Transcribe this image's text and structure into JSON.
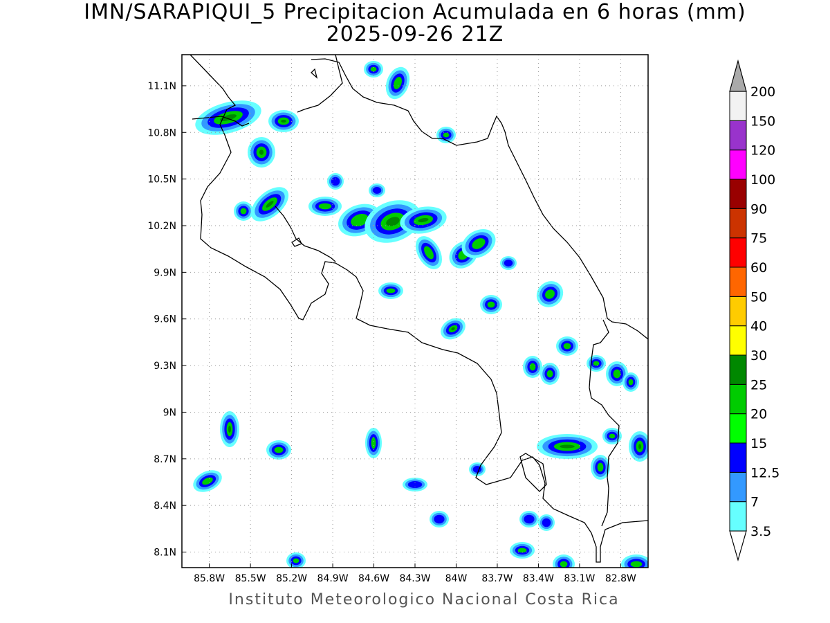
{
  "title_line1": "IMN/SARAPIQUI_5 Precipitacion Acumulada en 6 horas (mm)",
  "title_line2": "2025-09-26 21Z",
  "footer": "Instituto Meteorologico Nacional Costa Rica",
  "map": {
    "lon_range": [
      -86.0,
      -82.6
    ],
    "lat_range": [
      8.0,
      11.3
    ],
    "x_ticks": [
      "85.8W",
      "85.5W",
      "85.2W",
      "84.9W",
      "84.6W",
      "84.3W",
      "84W",
      "83.7W",
      "83.4W",
      "83.1W",
      "82.8W"
    ],
    "x_tick_lons": [
      -85.8,
      -85.5,
      -85.2,
      -84.9,
      -84.6,
      -84.3,
      -84.0,
      -83.7,
      -83.4,
      -83.1,
      -82.8
    ],
    "y_ticks": [
      "11.1N",
      "10.8N",
      "10.5N",
      "10.2N",
      "9.9N",
      "9.6N",
      "9.3N",
      "9N",
      "8.7N",
      "8.4N",
      "8.1N"
    ],
    "y_tick_lats": [
      11.1,
      10.8,
      10.5,
      10.2,
      9.9,
      9.6,
      9.3,
      9.0,
      8.7,
      8.4,
      8.1
    ],
    "grid": "dotted"
  },
  "legend": {
    "labels": [
      "3.5",
      "7",
      "12.5",
      "15",
      "20",
      "25",
      "30",
      "40",
      "50",
      "60",
      "75",
      "90",
      "100",
      "120",
      "150",
      "200"
    ],
    "colors": [
      "#66ffff",
      "#3399ff",
      "#0000ff",
      "#00ff00",
      "#00cc00",
      "#008800",
      "#ffff00",
      "#ffcc00",
      "#ff6600",
      "#ff0000",
      "#cc3300",
      "#990000",
      "#ff00ff",
      "#9933cc",
      "#f2f2f2",
      "#aaaaaa"
    ]
  }
}
